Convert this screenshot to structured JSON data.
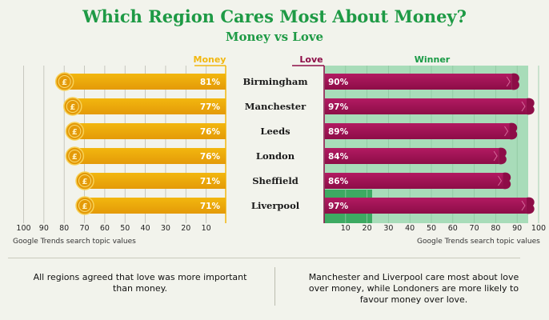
{
  "header": {
    "title": "Which Region Cares Most About Money?",
    "subtitle": "Money vs Love"
  },
  "colors": {
    "money": "#f2b70f",
    "money_dark": "#e49a08",
    "love": "#8d0d47",
    "love_light": "#b21a62",
    "winner_bg": "#a8dcb9",
    "winner_dark": "#199a45",
    "title": "#1e9a45"
  },
  "chart_data": {
    "type": "bar",
    "columns": {
      "money": "Money",
      "love": "Love",
      "winner": "Winner"
    },
    "categories": [
      "Birmingham",
      "Manchester",
      "Leeds",
      "London",
      "Sheffield",
      "Liverpool"
    ],
    "series": [
      {
        "name": "Money",
        "values": [
          81,
          77,
          76,
          76,
          71,
          71
        ],
        "labels": [
          "81%",
          "77%",
          "76%",
          "76%",
          "71%",
          "71%"
        ]
      },
      {
        "name": "Love",
        "values": [
          90,
          97,
          89,
          84,
          86,
          97
        ],
        "labels": [
          "90%",
          "97%",
          "89%",
          "84%",
          "86%",
          "97%"
        ]
      }
    ],
    "left_axis_ticks": [
      "100",
      "90",
      "80",
      "70",
      "60",
      "50",
      "40",
      "30",
      "20",
      "10"
    ],
    "right_axis_ticks": [
      "10",
      "20",
      "30",
      "40",
      "50",
      "60",
      "70",
      "80",
      "90",
      "100"
    ],
    "xlim": [
      0,
      100
    ],
    "grid": true,
    "axis_note_left": "Google Trends search topic values",
    "axis_note_right": "Google Trends search topic values"
  },
  "notes": {
    "left": "All regions agreed that love was more important than money.",
    "right": "Manchester and Liverpool care most about love over money, while Londoners are more likely to favour money over love."
  }
}
